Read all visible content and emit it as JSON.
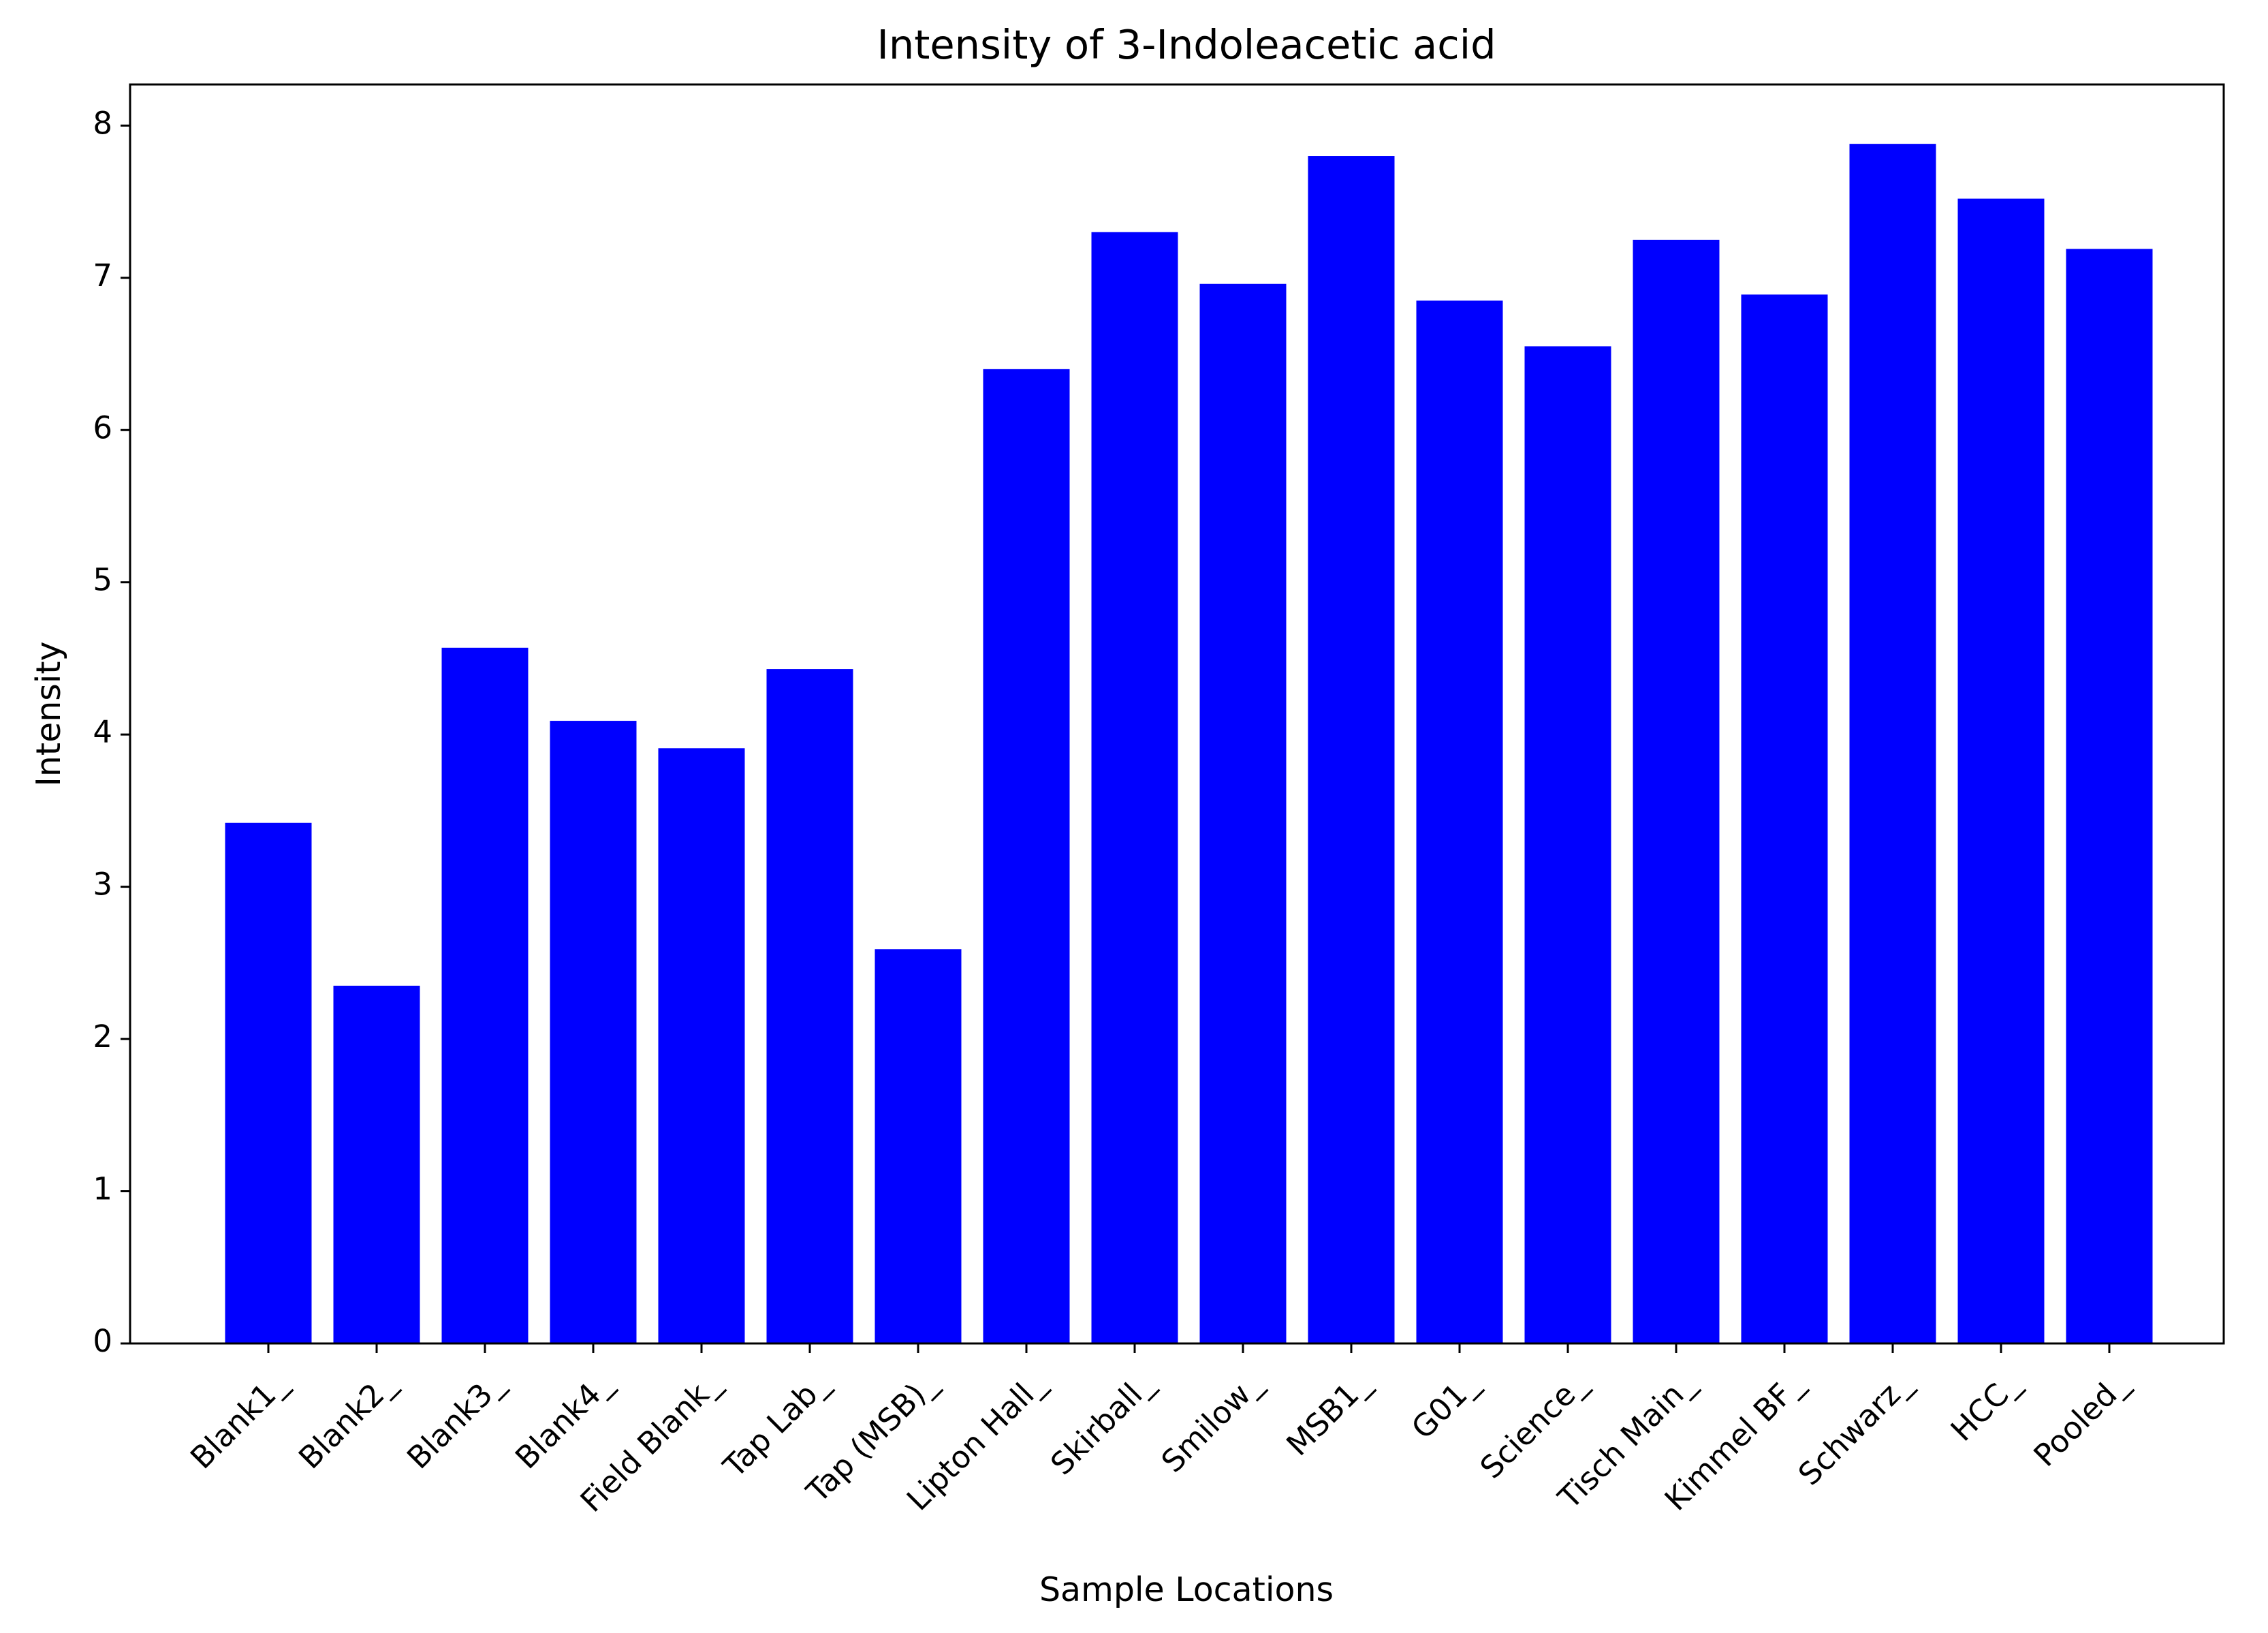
{
  "chart_data": {
    "type": "bar",
    "title": "Intensity of 3-Indoleacetic acid",
    "xlabel": "Sample Locations",
    "ylabel": "Intensity",
    "categories": [
      "Blank1_",
      "Blank2_",
      "Blank3_",
      "Blank4_",
      "Field Blank_",
      "Tap Lab_",
      "Tap (MSB)_",
      "Lipton Hall_",
      "Skirball_",
      "Smilow_",
      "MSB1_",
      "G01_",
      "Science_",
      "Tisch Main_",
      "Kimmel BF_",
      "Schwarz_",
      "HCC_",
      "Pooled_"
    ],
    "values": [
      3.42,
      2.35,
      4.57,
      4.09,
      3.91,
      4.43,
      2.59,
      6.4,
      7.3,
      6.96,
      7.8,
      6.85,
      6.55,
      7.25,
      6.89,
      7.88,
      7.52,
      7.19
    ],
    "yticks": [
      0,
      1,
      2,
      3,
      4,
      5,
      6,
      7,
      8
    ],
    "ylim": [
      0,
      8.27
    ],
    "bar_color": "#0000ff",
    "grid": false,
    "legend": "none"
  }
}
